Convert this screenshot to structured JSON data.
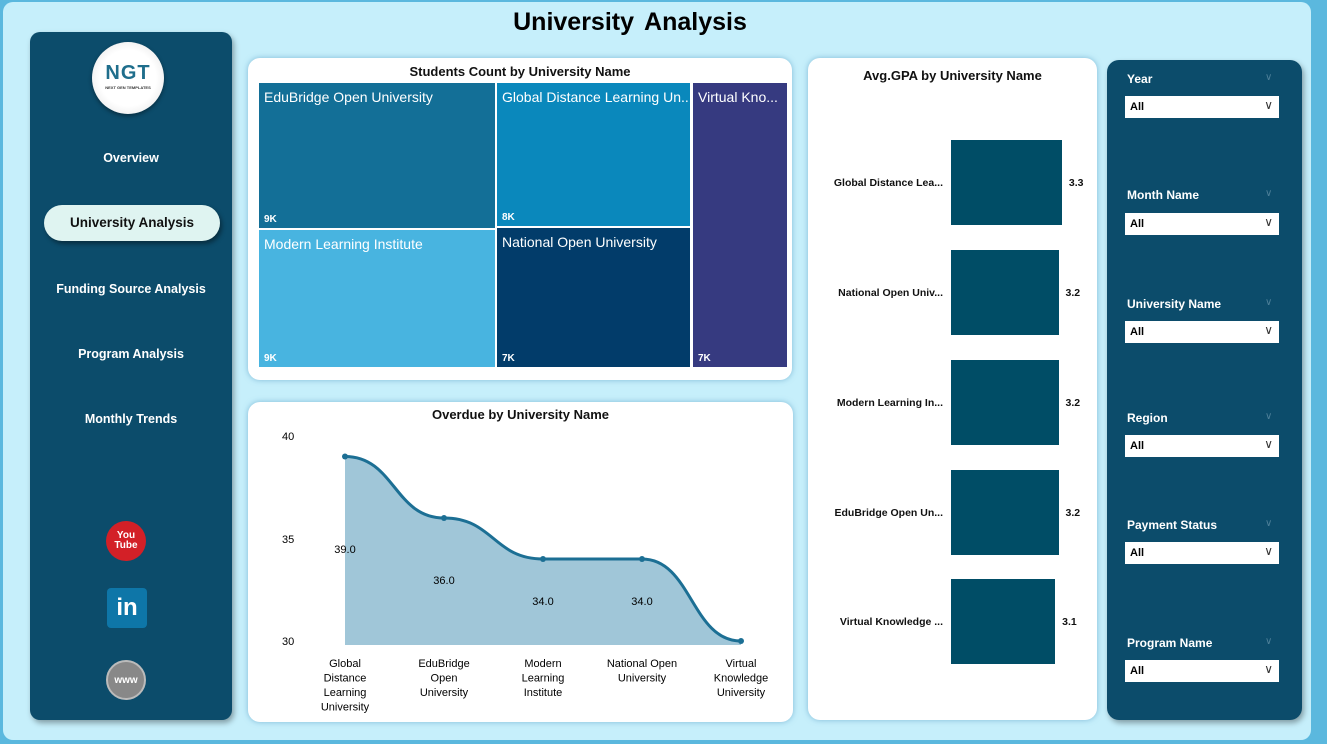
{
  "page": {
    "title": "University  Analysis"
  },
  "logo": {
    "text": "NGT",
    "subtext": "NEXT GEN TEMPLATES"
  },
  "nav": {
    "items": [
      {
        "label": "Overview"
      },
      {
        "label": "University Analysis",
        "active": true
      },
      {
        "label": "Funding Source Analysis"
      },
      {
        "label": "Program Analysis"
      },
      {
        "label": "Monthly Trends"
      }
    ]
  },
  "social": [
    {
      "icon": "youtube-icon",
      "label": "You Tube",
      "color": "#d32027"
    },
    {
      "icon": "linkedin-icon",
      "label": "in",
      "color": "#0e76a8"
    },
    {
      "icon": "globe-icon",
      "label": "www",
      "color": "#888888"
    }
  ],
  "treemap": {
    "title": "Students Count by University Name",
    "cells": [
      {
        "name": "EduBridge Open University",
        "value": "9K",
        "color": "#136f97"
      },
      {
        "name": "Global Distance Learning Un...",
        "value": "8K",
        "color": "#0a88bc"
      },
      {
        "name": "Virtual Kno...",
        "value": "7K",
        "color": "#363a80"
      },
      {
        "name": "Modern Learning Institute",
        "value": "9K",
        "color": "#48b4e0"
      },
      {
        "name": "National Open University",
        "value": "7K",
        "color": "#023c6a"
      }
    ]
  },
  "chart_data": [
    {
      "type": "area",
      "title": "Overdue by University Name",
      "categories": [
        "Global Distance Learning University",
        "EduBridge Open University",
        "Modern Learning Institute",
        "National Open University",
        "Virtual Knowledge University"
      ],
      "category_lines": [
        [
          "Global",
          "Distance",
          "Learning",
          "University"
        ],
        [
          "EduBridge",
          "Open",
          "University"
        ],
        [
          "Modern",
          "Learning",
          "Institute"
        ],
        [
          "National Open",
          "University"
        ],
        [
          "Virtual",
          "Knowledge",
          "University"
        ]
      ],
      "values": [
        39,
        36,
        34,
        34,
        30
      ],
      "data_labels": [
        "39.0",
        "36.0",
        "34.0",
        "34.0",
        ""
      ],
      "ylim": [
        30,
        40
      ],
      "yticks": [
        "40",
        "35",
        "30"
      ],
      "color": "#1c6f94",
      "fill": "#a0c6d8"
    },
    {
      "type": "bar",
      "orientation": "horizontal",
      "title": "Avg.GPA by University Name",
      "categories": [
        "Global Distance Lea...",
        "National Open Univ...",
        "Modern Learning In...",
        "EduBridge Open Un...",
        "Virtual Knowledge ..."
      ],
      "values": [
        3.3,
        3.2,
        3.2,
        3.2,
        3.1
      ],
      "data_labels": [
        "3.3",
        "3.2",
        "3.2",
        "3.2",
        "3.1"
      ],
      "color": "#004d66"
    }
  ],
  "slicers": [
    {
      "label": "Year",
      "value": "All"
    },
    {
      "label": "Month Name",
      "value": "All"
    },
    {
      "label": "University Name",
      "value": "All"
    },
    {
      "label": "Region",
      "value": "All"
    },
    {
      "label": "Payment Status",
      "value": "All"
    },
    {
      "label": "Program Name",
      "value": "All"
    }
  ]
}
